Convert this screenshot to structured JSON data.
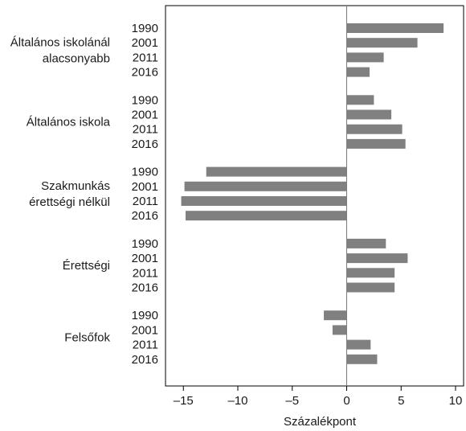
{
  "chart_data": {
    "type": "bar",
    "orientation": "horizontal",
    "xlabel": "Százalékpont",
    "xlim": [
      -16.5,
      10.5
    ],
    "xticks": [
      -15,
      -10,
      -5,
      0,
      5,
      10
    ],
    "xtick_labels": [
      "–15",
      "–10",
      "–5",
      "0",
      "5",
      "10"
    ],
    "grid": false,
    "bar_color": "#808080",
    "groups": [
      {
        "label_lines": [
          "Általános iskolánál",
          "alacsonyabb"
        ],
        "bars": [
          {
            "year": "1990",
            "value": 8.9
          },
          {
            "year": "2001",
            "value": 6.5
          },
          {
            "year": "2011",
            "value": 3.4
          },
          {
            "year": "2016",
            "value": 2.1
          }
        ]
      },
      {
        "label_lines": [
          "Általános iskola"
        ],
        "bars": [
          {
            "year": "1990",
            "value": 2.5
          },
          {
            "year": "2001",
            "value": 4.1
          },
          {
            "year": "2011",
            "value": 5.1
          },
          {
            "year": "2016",
            "value": 5.4
          }
        ]
      },
      {
        "label_lines": [
          "Szakmunkás",
          "érettségi nélkül"
        ],
        "bars": [
          {
            "year": "1990",
            "value": -12.9
          },
          {
            "year": "2001",
            "value": -14.9
          },
          {
            "year": "2011",
            "value": -15.2
          },
          {
            "year": "2016",
            "value": -14.8
          }
        ]
      },
      {
        "label_lines": [
          "Érettségi"
        ],
        "bars": [
          {
            "year": "1990",
            "value": 3.6
          },
          {
            "year": "2001",
            "value": 5.6
          },
          {
            "year": "2011",
            "value": 4.4
          },
          {
            "year": "2016",
            "value": 4.4
          }
        ]
      },
      {
        "label_lines": [
          "Felsőfok"
        ],
        "bars": [
          {
            "year": "1990",
            "value": -2.1
          },
          {
            "year": "2001",
            "value": -1.3
          },
          {
            "year": "2011",
            "value": 2.2
          },
          {
            "year": "2016",
            "value": 2.8
          }
        ]
      }
    ]
  }
}
